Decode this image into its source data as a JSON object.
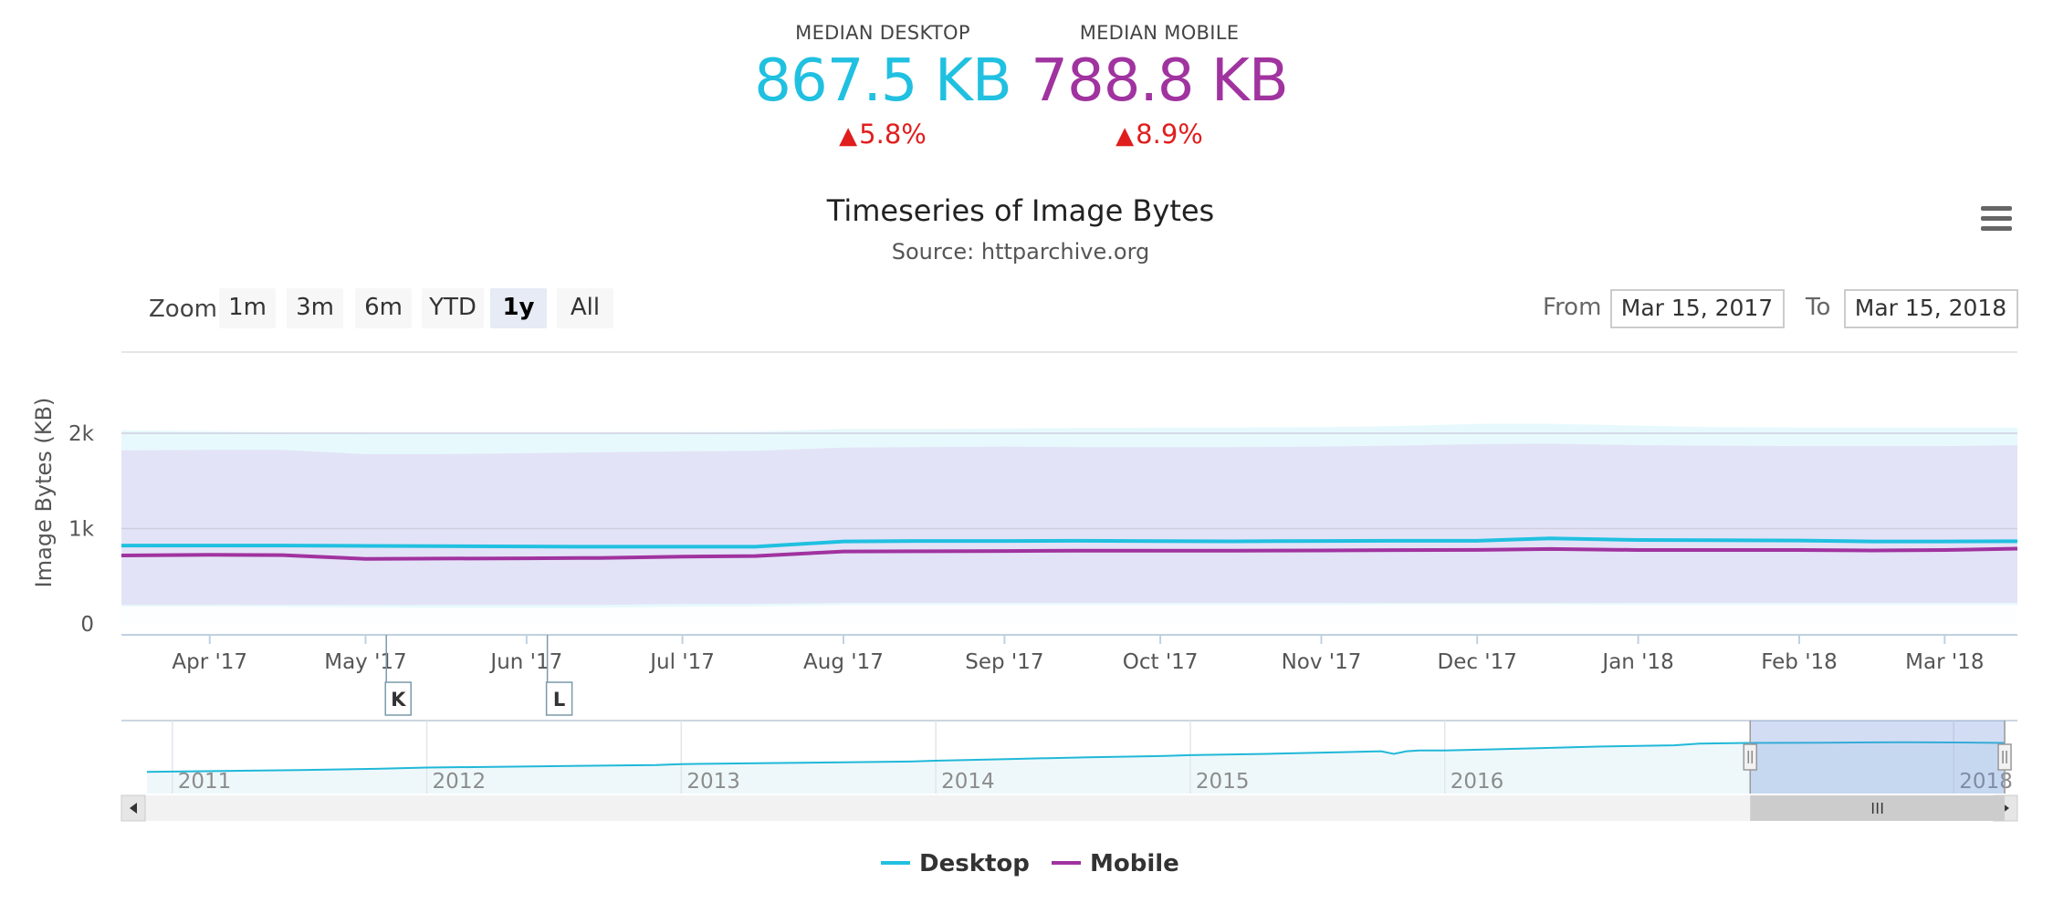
{
  "summary": {
    "desktop": {
      "label": "MEDIAN DESKTOP",
      "value": "867.5 KB",
      "change": "5.8%",
      "color": "#20c0e0"
    },
    "mobile": {
      "label": "MEDIAN MOBILE",
      "value": "788.8 KB",
      "change": "8.9%",
      "color": "#a0339f"
    },
    "change_color": "#e01e1e"
  },
  "menu_icon": "hamburger-menu-icon",
  "range_selector": {
    "zoom_label": "Zoom",
    "buttons": [
      "1m",
      "3m",
      "6m",
      "YTD",
      "1y",
      "All"
    ],
    "selected": "1y",
    "from_label": "From",
    "from_value": "Mar 15, 2017",
    "to_label": "To",
    "to_value": "Mar 15, 2018"
  },
  "chart_data": {
    "type": "line",
    "title": "Timeseries of Image Bytes",
    "subtitle": "Source: httparchive.org",
    "ylabel": "Image Bytes (KB)",
    "xlabel": "",
    "ylim": [
      0,
      2200
    ],
    "yticks": [
      0,
      1000,
      2000
    ],
    "ytick_labels": [
      "0",
      "1k",
      "2k"
    ],
    "xlim": [
      "2017-03-15",
      "2018-03-15"
    ],
    "xticks": [
      "2017-04-01",
      "2017-05-01",
      "2017-06-01",
      "2017-07-01",
      "2017-08-01",
      "2017-09-01",
      "2017-10-01",
      "2017-11-01",
      "2017-12-01",
      "2018-01-01",
      "2018-02-01",
      "2018-03-01"
    ],
    "xtick_labels": [
      "Apr '17",
      "May '17",
      "Jun '17",
      "Jul '17",
      "Aug '17",
      "Sep '17",
      "Oct '17",
      "Nov '17",
      "Dec '17",
      "Jan '18",
      "Feb '18",
      "Mar '18"
    ],
    "grid": true,
    "legend": "bottom-center",
    "x": [
      "2017-03-15",
      "2017-04-01",
      "2017-04-15",
      "2017-05-01",
      "2017-05-15",
      "2017-06-01",
      "2017-06-15",
      "2017-07-01",
      "2017-07-15",
      "2017-08-01",
      "2017-08-15",
      "2017-09-01",
      "2017-09-15",
      "2017-10-01",
      "2017-10-15",
      "2017-11-01",
      "2017-11-15",
      "2017-12-01",
      "2017-12-15",
      "2018-01-01",
      "2018-01-15",
      "2018-02-01",
      "2018-02-15",
      "2018-03-01",
      "2018-03-15"
    ],
    "series": [
      {
        "name": "Desktop",
        "color": "#20c0e0",
        "values": [
          822,
          822,
          822,
          818,
          815,
          812,
          810,
          810,
          810,
          865,
          870,
          870,
          872,
          868,
          866,
          870,
          872,
          872,
          898,
          880,
          878,
          875,
          865,
          865,
          867
        ],
        "band_low": [
          185,
          185,
          180,
          175,
          170,
          170,
          170,
          180,
          185,
          200,
          200,
          200,
          200,
          200,
          200,
          200,
          205,
          205,
          205,
          200,
          200,
          200,
          200,
          200,
          200
        ],
        "band_high": [
          2030,
          2020,
          2010,
          2005,
          2000,
          2000,
          2005,
          2010,
          2015,
          2045,
          2045,
          2050,
          2055,
          2060,
          2060,
          2065,
          2075,
          2100,
          2100,
          2080,
          2065,
          2060,
          2060,
          2060,
          2060
        ]
      },
      {
        "name": "Mobile",
        "color": "#a0339f",
        "values": [
          718,
          725,
          722,
          682,
          685,
          688,
          692,
          705,
          712,
          760,
          762,
          765,
          768,
          768,
          768,
          770,
          774,
          776,
          786,
          775,
          775,
          775,
          770,
          775,
          789
        ],
        "band_low": [
          200,
          200,
          200,
          200,
          200,
          200,
          200,
          210,
          210,
          220,
          220,
          220,
          220,
          220,
          220,
          220,
          220,
          220,
          220,
          220,
          220,
          220,
          220,
          220,
          220
        ],
        "band_high": [
          1820,
          1825,
          1825,
          1780,
          1780,
          1790,
          1800,
          1810,
          1815,
          1850,
          1855,
          1860,
          1855,
          1855,
          1855,
          1860,
          1870,
          1885,
          1890,
          1875,
          1870,
          1865,
          1865,
          1865,
          1875
        ]
      }
    ],
    "flags": [
      {
        "date": "2017-05-05",
        "label": "K"
      },
      {
        "date": "2017-06-05",
        "label": "L"
      }
    ],
    "navigator": {
      "x_years": [
        2011,
        2012,
        2013,
        2014,
        2015,
        2016,
        2018
      ],
      "year_labels": [
        "2011",
        "2012",
        "2013",
        "2014",
        "2015",
        "2016",
        "2018"
      ],
      "xlim": [
        2010.8,
        2018.25
      ],
      "selection": [
        2017.2,
        2018.2
      ],
      "series_x": [
        2010.9,
        2011.2,
        2011.5,
        2011.8,
        2012.0,
        2012.3,
        2012.6,
        2012.9,
        2013.0,
        2013.3,
        2013.6,
        2013.9,
        2014.0,
        2014.3,
        2014.6,
        2014.9,
        2015.0,
        2015.3,
        2015.6,
        2015.75,
        2015.8,
        2015.85,
        2015.9,
        2016.0,
        2016.3,
        2016.6,
        2016.9,
        2017.0,
        2017.2,
        2017.5,
        2017.8,
        2018.0,
        2018.2
      ],
      "series_y": [
        400,
        420,
        440,
        470,
        500,
        520,
        540,
        560,
        580,
        600,
        620,
        640,
        660,
        700,
        740,
        770,
        790,
        820,
        860,
        880,
        820,
        880,
        900,
        900,
        940,
        990,
        1020,
        1060,
        1075,
        1080,
        1090,
        1085,
        1075
      ]
    }
  }
}
